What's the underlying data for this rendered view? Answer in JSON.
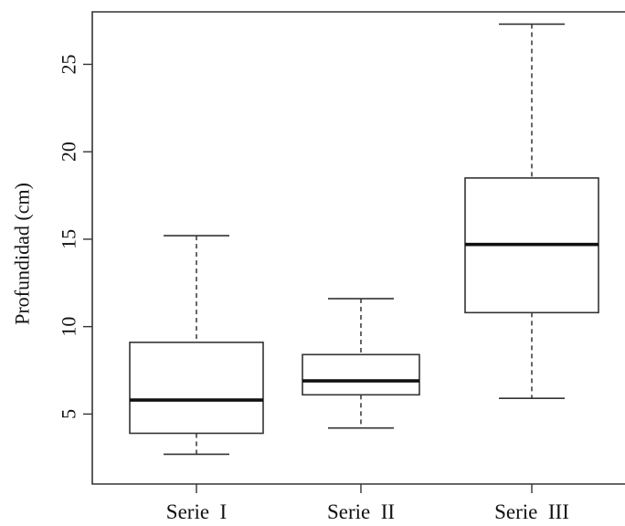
{
  "chart_data": {
    "type": "boxplot",
    "title": "",
    "xlabel": "",
    "ylabel": "Profundidad (cm)",
    "ylim": [
      1.0,
      28.0
    ],
    "yticks": [
      5,
      10,
      15,
      20,
      25
    ],
    "ytick_labels": [
      "5",
      "10",
      "15",
      "20",
      "25"
    ],
    "categories": [
      "Serie  I",
      "Serie  II",
      "Serie  III"
    ],
    "series": [
      {
        "category": "Serie  I",
        "whisker_low": 2.7,
        "q1": 3.9,
        "median": 5.8,
        "q3": 9.1,
        "whisker_high": 15.2
      },
      {
        "category": "Serie  II",
        "whisker_low": 4.2,
        "q1": 6.1,
        "median": 6.9,
        "q3": 8.4,
        "whisker_high": 11.6
      },
      {
        "category": "Serie  III",
        "whisker_low": 5.9,
        "q1": 10.8,
        "median": 14.7,
        "q3": 18.5,
        "whisker_high": 27.3
      }
    ],
    "grid": false,
    "legend": "none",
    "colors": {
      "box_fill": "#ffffff",
      "stroke": "#333333",
      "median": "#111111"
    }
  }
}
